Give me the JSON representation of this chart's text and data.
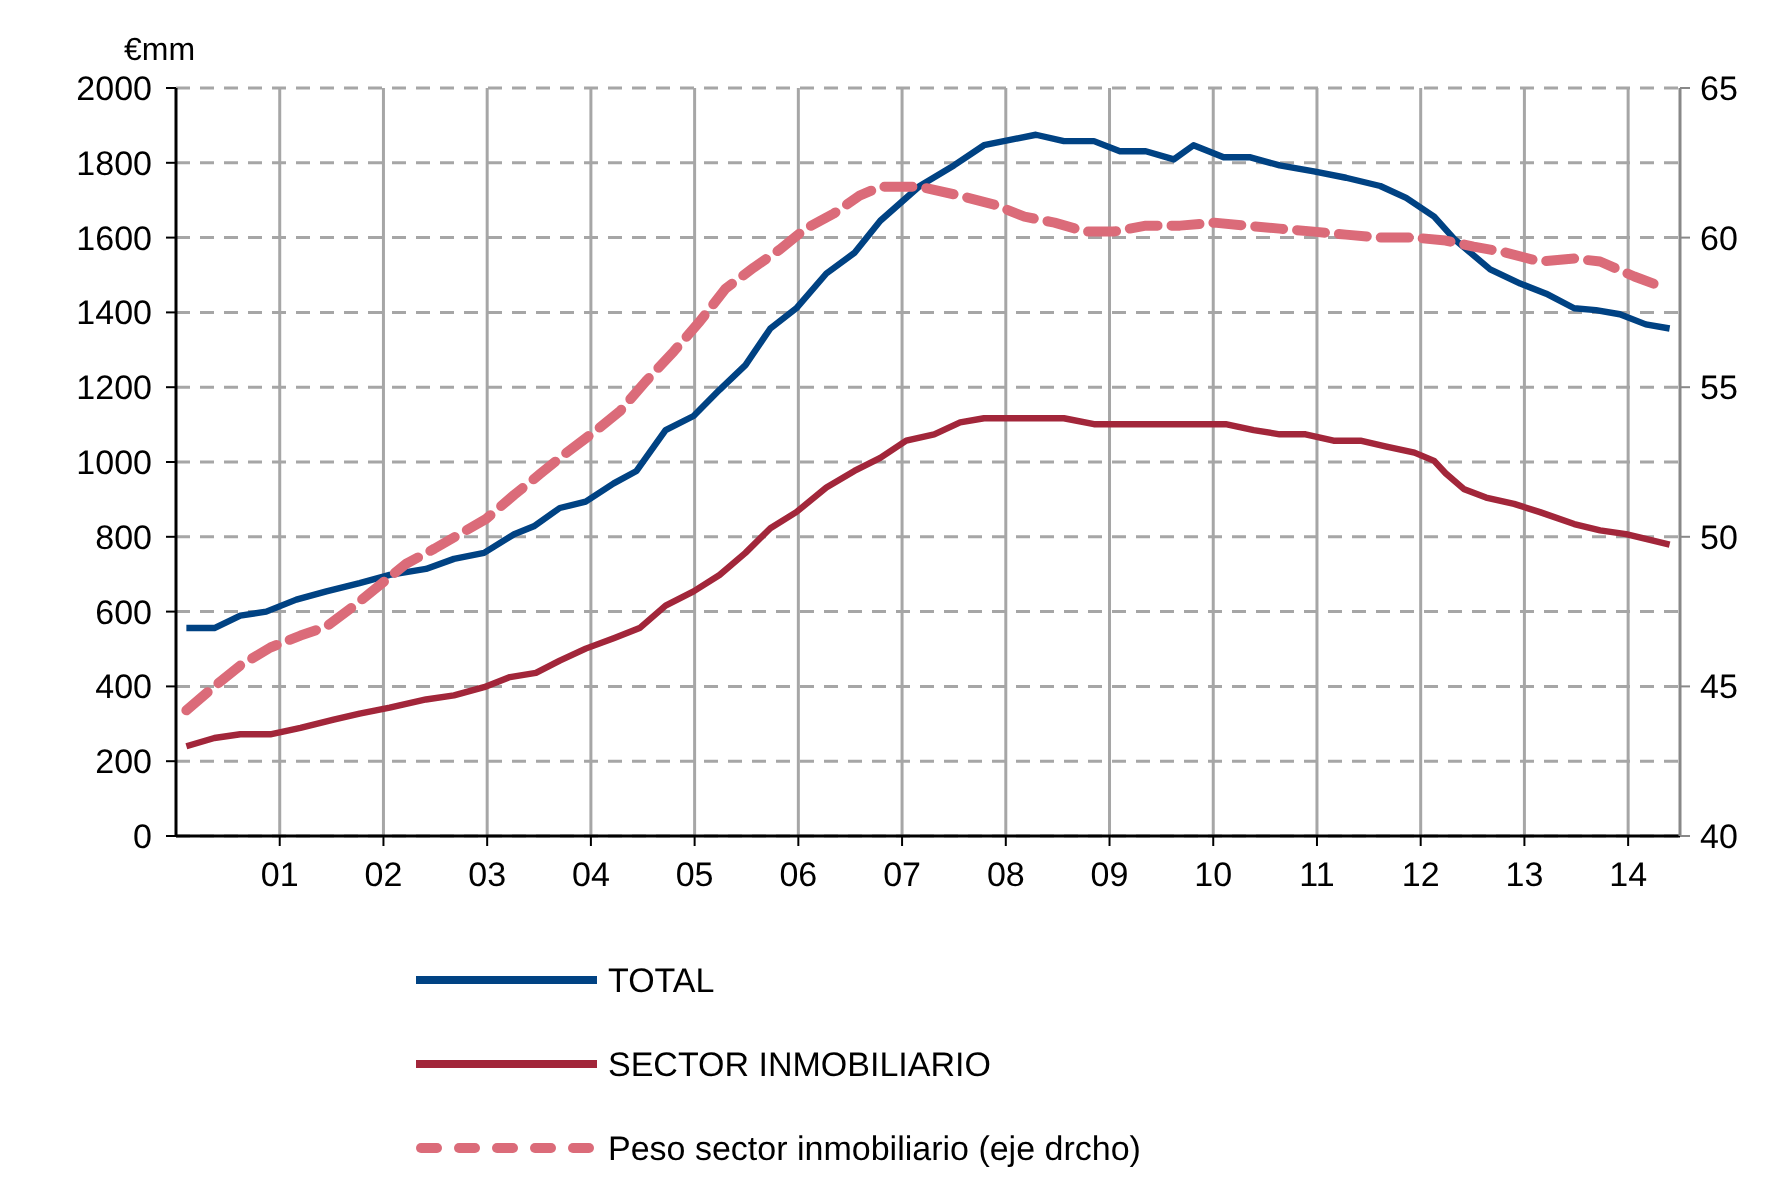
{
  "chart_data": {
    "type": "line",
    "ylabel": "€mm",
    "xlim": [
      2000,
      2014.5
    ],
    "xticks": [
      {
        "value": 2001,
        "label": "01"
      },
      {
        "value": 2002,
        "label": "02"
      },
      {
        "value": 2003,
        "label": "03"
      },
      {
        "value": 2004,
        "label": "04"
      },
      {
        "value": 2005,
        "label": "05"
      },
      {
        "value": 2006,
        "label": "06"
      },
      {
        "value": 2007,
        "label": "07"
      },
      {
        "value": 2008,
        "label": "08"
      },
      {
        "value": 2009,
        "label": "09"
      },
      {
        "value": 2010,
        "label": "10"
      },
      {
        "value": 2011,
        "label": "11"
      },
      {
        "value": 2012,
        "label": "12"
      },
      {
        "value": 2013,
        "label": "13"
      },
      {
        "value": 2014,
        "label": "14"
      }
    ],
    "ylim": [
      0,
      2000
    ],
    "yticks": [
      0,
      200,
      400,
      600,
      800,
      1000,
      1200,
      1400,
      1600,
      1800,
      2000
    ],
    "y2lim": [
      40,
      65
    ],
    "y2ticks": [
      40,
      45,
      50,
      55,
      60,
      65
    ],
    "grid": true,
    "legend": "bottom",
    "marker": "none",
    "series": [
      {
        "name": "TOTAL",
        "color": "#004283",
        "line_style": "solid",
        "x": [
          2000.1,
          2000.37,
          2000.62,
          2000.87,
          2001.16,
          2001.45,
          2001.77,
          2002.06,
          2002.41,
          2002.68,
          2002.97,
          2003.26,
          2003.45,
          2003.7,
          2003.95,
          2004.22,
          2004.44,
          2004.72,
          2004.99,
          2005.24,
          2005.49,
          2005.73,
          2005.98,
          2006.27,
          2006.54,
          2006.79,
          2007.17,
          2007.5,
          2007.79,
          2008.29,
          2008.56,
          2008.85,
          2009.1,
          2009.35,
          2009.62,
          2009.81,
          2010.1,
          2010.35,
          2010.64,
          2010.97,
          2011.28,
          2011.61,
          2011.86,
          2012.13,
          2012.32,
          2012.67,
          2012.96,
          2013.21,
          2013.48,
          2013.69,
          2013.92,
          2014.17,
          2014.4
        ],
        "values": [
          556,
          556,
          589,
          600,
          632,
          654,
          676,
          698,
          714,
          741,
          757,
          807,
          828,
          877,
          894,
          943,
          976,
          1085,
          1123,
          1193,
          1259,
          1357,
          1411,
          1504,
          1559,
          1645,
          1738,
          1793,
          1847,
          1875,
          1858,
          1858,
          1831,
          1831,
          1809,
          1847,
          1815,
          1815,
          1793,
          1777,
          1760,
          1738,
          1706,
          1656,
          1597,
          1515,
          1477,
          1450,
          1411,
          1406,
          1395,
          1368,
          1357
        ]
      },
      {
        "name": "SECTOR INMOBILIARIO",
        "color": "#a2263a",
        "line_style": "solid",
        "x": [
          2000.1,
          2000.37,
          2000.62,
          2000.91,
          2001.2,
          2001.52,
          2001.77,
          2002.06,
          2002.41,
          2002.68,
          2002.97,
          2003.22,
          2003.47,
          2003.7,
          2003.95,
          2004.22,
          2004.47,
          2004.72,
          2004.99,
          2005.24,
          2005.49,
          2005.73,
          2005.98,
          2006.27,
          2006.54,
          2006.79,
          2007.04,
          2007.31,
          2007.56,
          2007.79,
          2008.56,
          2008.85,
          2010.12,
          2010.39,
          2010.64,
          2010.89,
          2011.16,
          2011.42,
          2011.67,
          2011.94,
          2012.13,
          2012.24,
          2012.42,
          2012.63,
          2012.9,
          2013.15,
          2013.48,
          2013.73,
          2013.98,
          2014.4
        ],
        "values": [
          240,
          262,
          272,
          272,
          289,
          311,
          327,
          343,
          365,
          376,
          398,
          425,
          436,
          469,
          501,
          529,
          556,
          616,
          654,
          698,
          757,
          823,
          866,
          932,
          976,
          1011,
          1057,
          1074,
          1106,
          1117,
          1117,
          1101,
          1101,
          1085,
          1074,
          1074,
          1057,
          1057,
          1041,
          1025,
          1003,
          970,
          927,
          905,
          888,
          866,
          834,
          817,
          807,
          779
        ]
      },
      {
        "name": "Peso sector inmobiliario (eje drcho)",
        "color": "#db6b79",
        "line_style": "dashed",
        "axis": "y2",
        "x": [
          2000.1,
          2000.37,
          2000.62,
          2000.91,
          2001.2,
          2001.45,
          2001.72,
          2001.97,
          2002.22,
          2002.49,
          2002.74,
          2002.99,
          2003.26,
          2003.51,
          2003.76,
          2004.03,
          2004.28,
          2004.53,
          2004.8,
          2005.05,
          2005.3,
          2005.57,
          2005.82,
          2006.07,
          2006.34,
          2006.59,
          2006.79,
          2007.17,
          2007.56,
          2007.89,
          2008.18,
          2008.47,
          2008.77,
          2009.04,
          2009.35,
          2009.68,
          2010.01,
          2010.32,
          2010.64,
          2010.97,
          2011.28,
          2011.61,
          2011.94,
          2012.24,
          2012.51,
          2012.82,
          2013.15,
          2013.48,
          2013.73,
          2014.06,
          2014.37
        ],
        "values": [
          44.2,
          45.0,
          45.7,
          46.3,
          46.7,
          47.0,
          47.7,
          48.4,
          49.1,
          49.6,
          50.1,
          50.6,
          51.4,
          52.1,
          52.8,
          53.5,
          54.2,
          55.2,
          56.2,
          57.2,
          58.3,
          59.0,
          59.6,
          60.3,
          60.8,
          61.4,
          61.7,
          61.7,
          61.4,
          61.1,
          60.7,
          60.5,
          60.2,
          60.2,
          60.4,
          60.4,
          60.5,
          60.4,
          60.3,
          60.2,
          60.1,
          60.0,
          60.0,
          59.9,
          59.7,
          59.5,
          59.2,
          59.3,
          59.2,
          58.7,
          58.3
        ]
      }
    ]
  }
}
